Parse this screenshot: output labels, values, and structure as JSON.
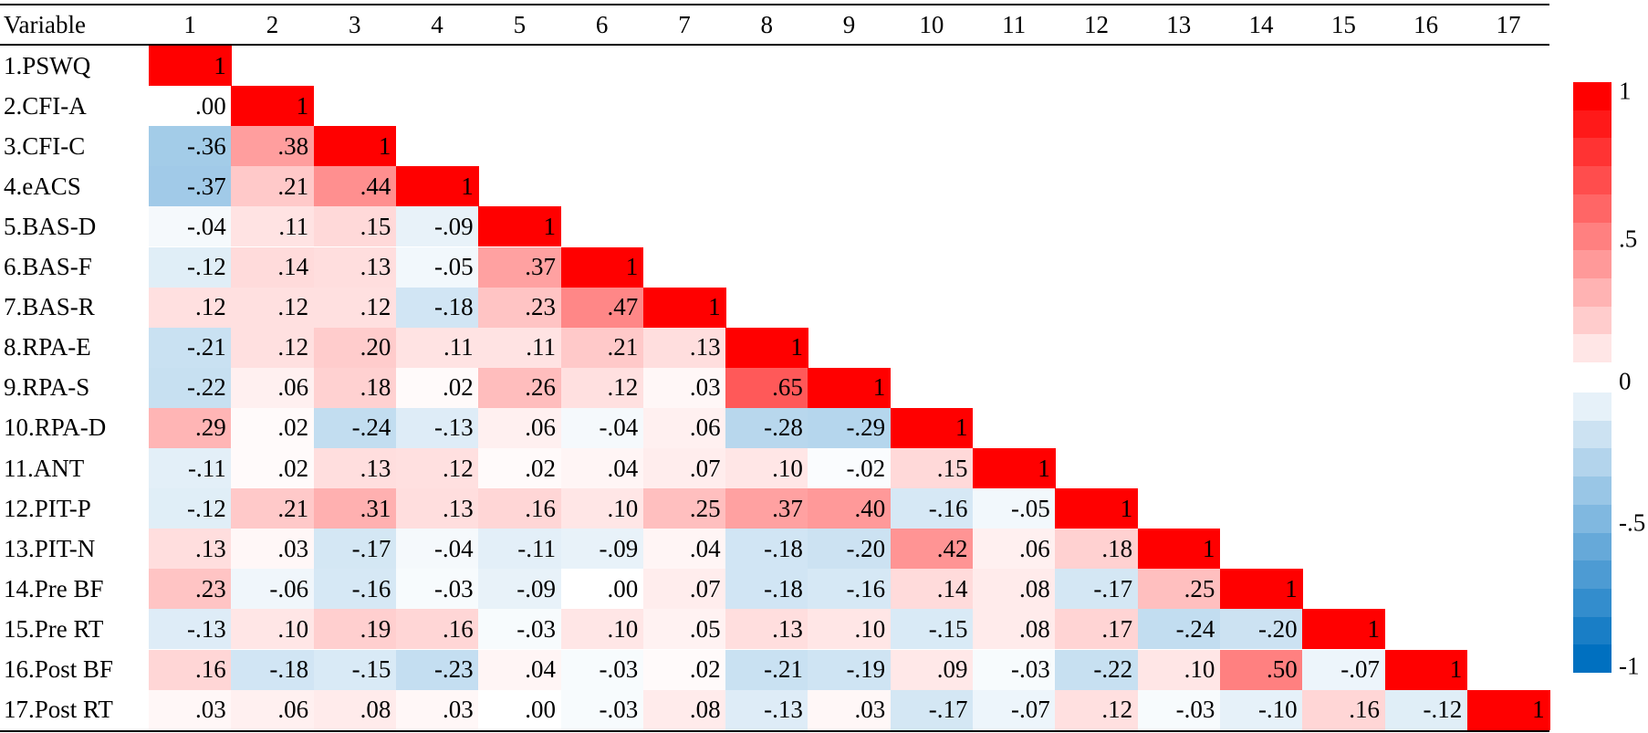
{
  "table": {
    "header": [
      "Variable",
      "1",
      "2",
      "3",
      "4",
      "5",
      "6",
      "7",
      "8",
      "9",
      "10",
      "11",
      "12",
      "13",
      "14",
      "15",
      "16",
      "17"
    ],
    "rows": [
      {
        "label": "1.PSWQ",
        "cells": [
          "1"
        ]
      },
      {
        "label": "2.CFI-A",
        "cells": [
          ".00",
          "1"
        ]
      },
      {
        "label": "3.CFI-C",
        "cells": [
          "-.36",
          ".38",
          "1"
        ]
      },
      {
        "label": "4.eACS",
        "cells": [
          "-.37",
          ".21",
          ".44",
          "1"
        ]
      },
      {
        "label": "5.BAS-D",
        "cells": [
          "-.04",
          ".11",
          ".15",
          "-.09",
          "1"
        ]
      },
      {
        "label": "6.BAS-F",
        "cells": [
          "-.12",
          ".14",
          ".13",
          "-.05",
          ".37",
          "1"
        ]
      },
      {
        "label": "7.BAS-R",
        "cells": [
          ".12",
          ".12",
          ".12",
          "-.18",
          ".23",
          ".47",
          "1"
        ]
      },
      {
        "label": "8.RPA-E",
        "cells": [
          "-.21",
          ".12",
          ".20",
          ".11",
          ".11",
          ".21",
          ".13",
          "1"
        ]
      },
      {
        "label": "9.RPA-S",
        "cells": [
          "-.22",
          ".06",
          ".18",
          ".02",
          ".26",
          ".12",
          ".03",
          ".65",
          "1"
        ]
      },
      {
        "label": "10.RPA-D",
        "cells": [
          ".29",
          ".02",
          "-.24",
          "-.13",
          ".06",
          "-.04",
          ".06",
          "-.28",
          "-.29",
          "1"
        ]
      },
      {
        "label": "11.ANT",
        "cells": [
          "-.11",
          ".02",
          ".13",
          ".12",
          ".02",
          ".04",
          ".07",
          ".10",
          "-.02",
          ".15",
          "1"
        ]
      },
      {
        "label": "12.PIT-P",
        "cells": [
          "-.12",
          ".21",
          ".31",
          ".13",
          ".16",
          ".10",
          ".25",
          ".37",
          ".40",
          "-.16",
          "-.05",
          "1"
        ]
      },
      {
        "label": "13.PIT-N",
        "cells": [
          ".13",
          ".03",
          "-.17",
          "-.04",
          "-.11",
          "-.09",
          ".04",
          "-.18",
          "-.20",
          ".42",
          ".06",
          ".18",
          "1"
        ]
      },
      {
        "label": "14.Pre BF",
        "cells": [
          ".23",
          "-.06",
          "-.16",
          "-.03",
          "-.09",
          ".00",
          ".07",
          "-.18",
          "-.16",
          ".14",
          ".08",
          "-.17",
          ".25",
          "1"
        ]
      },
      {
        "label": "15.Pre RT",
        "cells": [
          "-.13",
          ".10",
          ".19",
          ".16",
          "-.03",
          ".10",
          ".05",
          ".13",
          ".10",
          "-.15",
          ".08",
          ".17",
          "-.24",
          "-.20",
          "1"
        ]
      },
      {
        "label": "16.Post BF",
        "cells": [
          ".16",
          "-.18",
          "-.15",
          "-.23",
          ".04",
          "-.03",
          ".02",
          "-.21",
          "-.19",
          ".09",
          "-.03",
          "-.22",
          ".10",
          ".50",
          "-.07",
          "1"
        ]
      },
      {
        "label": "17.Post RT",
        "cells": [
          ".03",
          ".06",
          ".08",
          ".03",
          ".00",
          "-.03",
          ".08",
          "-.13",
          ".03",
          "-.17",
          "-.07",
          ".12",
          "-.03",
          "-.10",
          ".16",
          "-.12",
          "1"
        ]
      }
    ]
  },
  "legend": {
    "ticks": [
      "1",
      ".5",
      "0",
      "-.5",
      "-1"
    ]
  }
}
